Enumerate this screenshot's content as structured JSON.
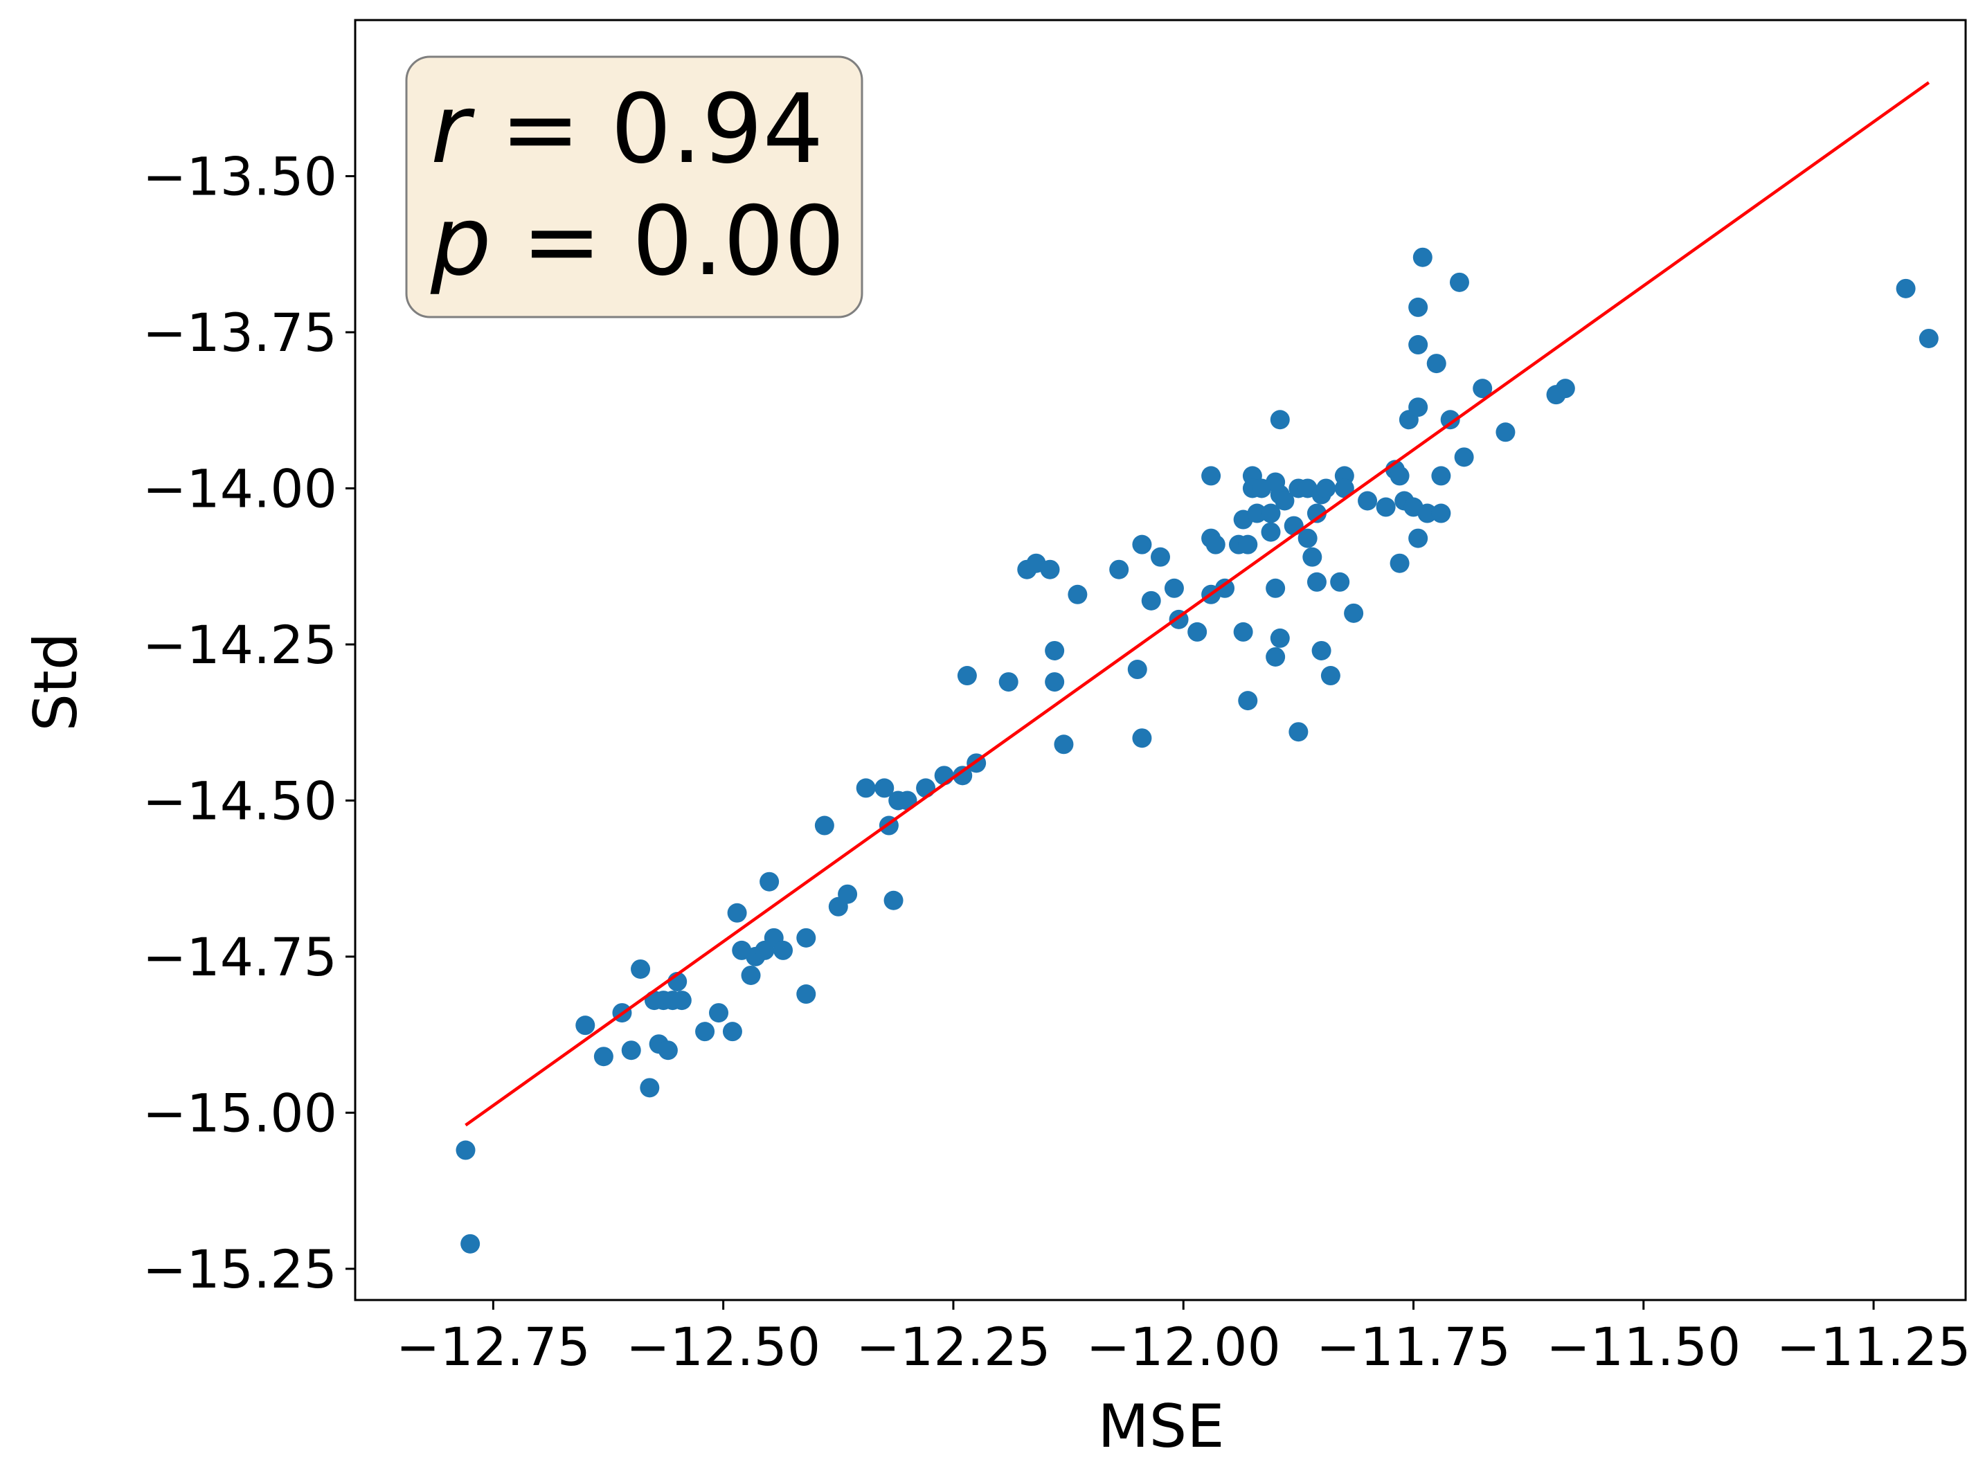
{
  "chart_data": {
    "type": "scatter",
    "title": "",
    "xlabel": "MSE",
    "ylabel": "Std",
    "xlim": [
      -12.9,
      -11.15
    ],
    "ylim": [
      -15.3,
      -13.25
    ],
    "xticks": [
      -12.75,
      -12.5,
      -12.25,
      -12.0,
      -11.75,
      -11.5,
      -11.25
    ],
    "xtick_labels": [
      "−12.75",
      "−12.50",
      "−12.25",
      "−12.00",
      "−11.75",
      "−11.50",
      "−11.25"
    ],
    "yticks": [
      -13.5,
      -13.75,
      -14.0,
      -14.25,
      -14.5,
      -14.75,
      -15.0,
      -15.25
    ],
    "ytick_labels": [
      "−13.50",
      "−13.75",
      "−14.00",
      "−14.25",
      "−14.50",
      "−14.75",
      "−15.00",
      "−15.25"
    ],
    "grid": false,
    "colors": {
      "points": "#1f77b4",
      "fit_line": "#ff0000",
      "stat_box_fill": "#f9eedb",
      "stat_box_edge": "#7f7f7f"
    },
    "annotation": {
      "r_symbol": "r",
      "r_text": " = 0.94",
      "p_symbol": "p",
      "p_text": " = 0.00",
      "placement": "top-left"
    },
    "fit_line": {
      "x": [
        -12.78,
        -11.19
      ],
      "y": [
        -15.02,
        -13.35
      ]
    },
    "points": [
      [
        -12.78,
        -15.06
      ],
      [
        -12.775,
        -15.21
      ],
      [
        -12.65,
        -14.86
      ],
      [
        -12.63,
        -14.91
      ],
      [
        -12.61,
        -14.84
      ],
      [
        -12.6,
        -14.9
      ],
      [
        -12.59,
        -14.77
      ],
      [
        -12.58,
        -14.96
      ],
      [
        -12.575,
        -14.82
      ],
      [
        -12.57,
        -14.89
      ],
      [
        -12.565,
        -14.82
      ],
      [
        -12.56,
        -14.9
      ],
      [
        -12.555,
        -14.82
      ],
      [
        -12.55,
        -14.79
      ],
      [
        -12.545,
        -14.82
      ],
      [
        -12.52,
        -14.87
      ],
      [
        -12.505,
        -14.84
      ],
      [
        -12.49,
        -14.87
      ],
      [
        -12.485,
        -14.68
      ],
      [
        -12.48,
        -14.74
      ],
      [
        -12.47,
        -14.78
      ],
      [
        -12.465,
        -14.75
      ],
      [
        -12.455,
        -14.74
      ],
      [
        -12.45,
        -14.63
      ],
      [
        -12.445,
        -14.72
      ],
      [
        -12.435,
        -14.74
      ],
      [
        -12.41,
        -14.72
      ],
      [
        -12.41,
        -14.81
      ],
      [
        -12.39,
        -14.54
      ],
      [
        -12.375,
        -14.67
      ],
      [
        -12.365,
        -14.65
      ],
      [
        -12.345,
        -14.48
      ],
      [
        -12.325,
        -14.48
      ],
      [
        -12.32,
        -14.54
      ],
      [
        -12.315,
        -14.66
      ],
      [
        -12.31,
        -14.5
      ],
      [
        -12.3,
        -14.5
      ],
      [
        -12.28,
        -14.48
      ],
      [
        -12.26,
        -14.46
      ],
      [
        -12.24,
        -14.46
      ],
      [
        -12.235,
        -14.3
      ],
      [
        -12.225,
        -14.44
      ],
      [
        -12.19,
        -14.31
      ],
      [
        -12.17,
        -14.13
      ],
      [
        -12.16,
        -14.12
      ],
      [
        -12.145,
        -14.13
      ],
      [
        -12.14,
        -14.31
      ],
      [
        -12.14,
        -14.26
      ],
      [
        -12.13,
        -14.41
      ],
      [
        -12.115,
        -14.17
      ],
      [
        -12.07,
        -14.13
      ],
      [
        -12.05,
        -14.29
      ],
      [
        -12.045,
        -14.4
      ],
      [
        -12.045,
        -14.09
      ],
      [
        -12.035,
        -14.18
      ],
      [
        -12.025,
        -14.11
      ],
      [
        -12.01,
        -14.16
      ],
      [
        -12.005,
        -14.21
      ],
      [
        -11.985,
        -14.23
      ],
      [
        -11.97,
        -14.17
      ],
      [
        -11.97,
        -14.08
      ],
      [
        -11.97,
        -13.98
      ],
      [
        -11.965,
        -14.09
      ],
      [
        -11.955,
        -14.16
      ],
      [
        -11.94,
        -14.09
      ],
      [
        -11.935,
        -14.05
      ],
      [
        -11.935,
        -14.23
      ],
      [
        -11.93,
        -14.34
      ],
      [
        -11.93,
        -14.09
      ],
      [
        -11.925,
        -13.98
      ],
      [
        -11.925,
        -14.0
      ],
      [
        -11.92,
        -14.04
      ],
      [
        -11.915,
        -14.0
      ],
      [
        -11.905,
        -14.07
      ],
      [
        -11.905,
        -14.04
      ],
      [
        -11.9,
        -13.99
      ],
      [
        -11.9,
        -14.16
      ],
      [
        -11.9,
        -14.27
      ],
      [
        -11.895,
        -13.89
      ],
      [
        -11.895,
        -14.01
      ],
      [
        -11.895,
        -14.24
      ],
      [
        -11.89,
        -14.02
      ],
      [
        -11.88,
        -14.06
      ],
      [
        -11.875,
        -14.39
      ],
      [
        -11.875,
        -14.0
      ],
      [
        -11.865,
        -14.0
      ],
      [
        -11.865,
        -14.08
      ],
      [
        -11.86,
        -14.11
      ],
      [
        -11.855,
        -14.04
      ],
      [
        -11.855,
        -14.15
      ],
      [
        -11.85,
        -14.26
      ],
      [
        -11.85,
        -14.01
      ],
      [
        -11.845,
        -14.0
      ],
      [
        -11.84,
        -14.3
      ],
      [
        -11.83,
        -14.15
      ],
      [
        -11.825,
        -13.98
      ],
      [
        -11.825,
        -14.0
      ],
      [
        -11.815,
        -14.2
      ],
      [
        -11.8,
        -14.02
      ],
      [
        -11.78,
        -14.03
      ],
      [
        -11.77,
        -13.97
      ],
      [
        -11.765,
        -13.98
      ],
      [
        -11.765,
        -14.12
      ],
      [
        -11.76,
        -14.02
      ],
      [
        -11.755,
        -13.89
      ],
      [
        -11.75,
        -14.03
      ],
      [
        -11.745,
        -13.71
      ],
      [
        -11.745,
        -14.08
      ],
      [
        -11.745,
        -13.77
      ],
      [
        -11.745,
        -13.87
      ],
      [
        -11.74,
        -13.63
      ],
      [
        -11.735,
        -14.04
      ],
      [
        -11.725,
        -13.8
      ],
      [
        -11.72,
        -13.98
      ],
      [
        -11.72,
        -14.04
      ],
      [
        -11.71,
        -13.89
      ],
      [
        -11.7,
        -13.67
      ],
      [
        -11.695,
        -13.95
      ],
      [
        -11.675,
        -13.84
      ],
      [
        -11.65,
        -13.91
      ],
      [
        -11.595,
        -13.85
      ],
      [
        -11.585,
        -13.84
      ],
      [
        -11.215,
        -13.68
      ],
      [
        -11.19,
        -13.76
      ]
    ]
  }
}
